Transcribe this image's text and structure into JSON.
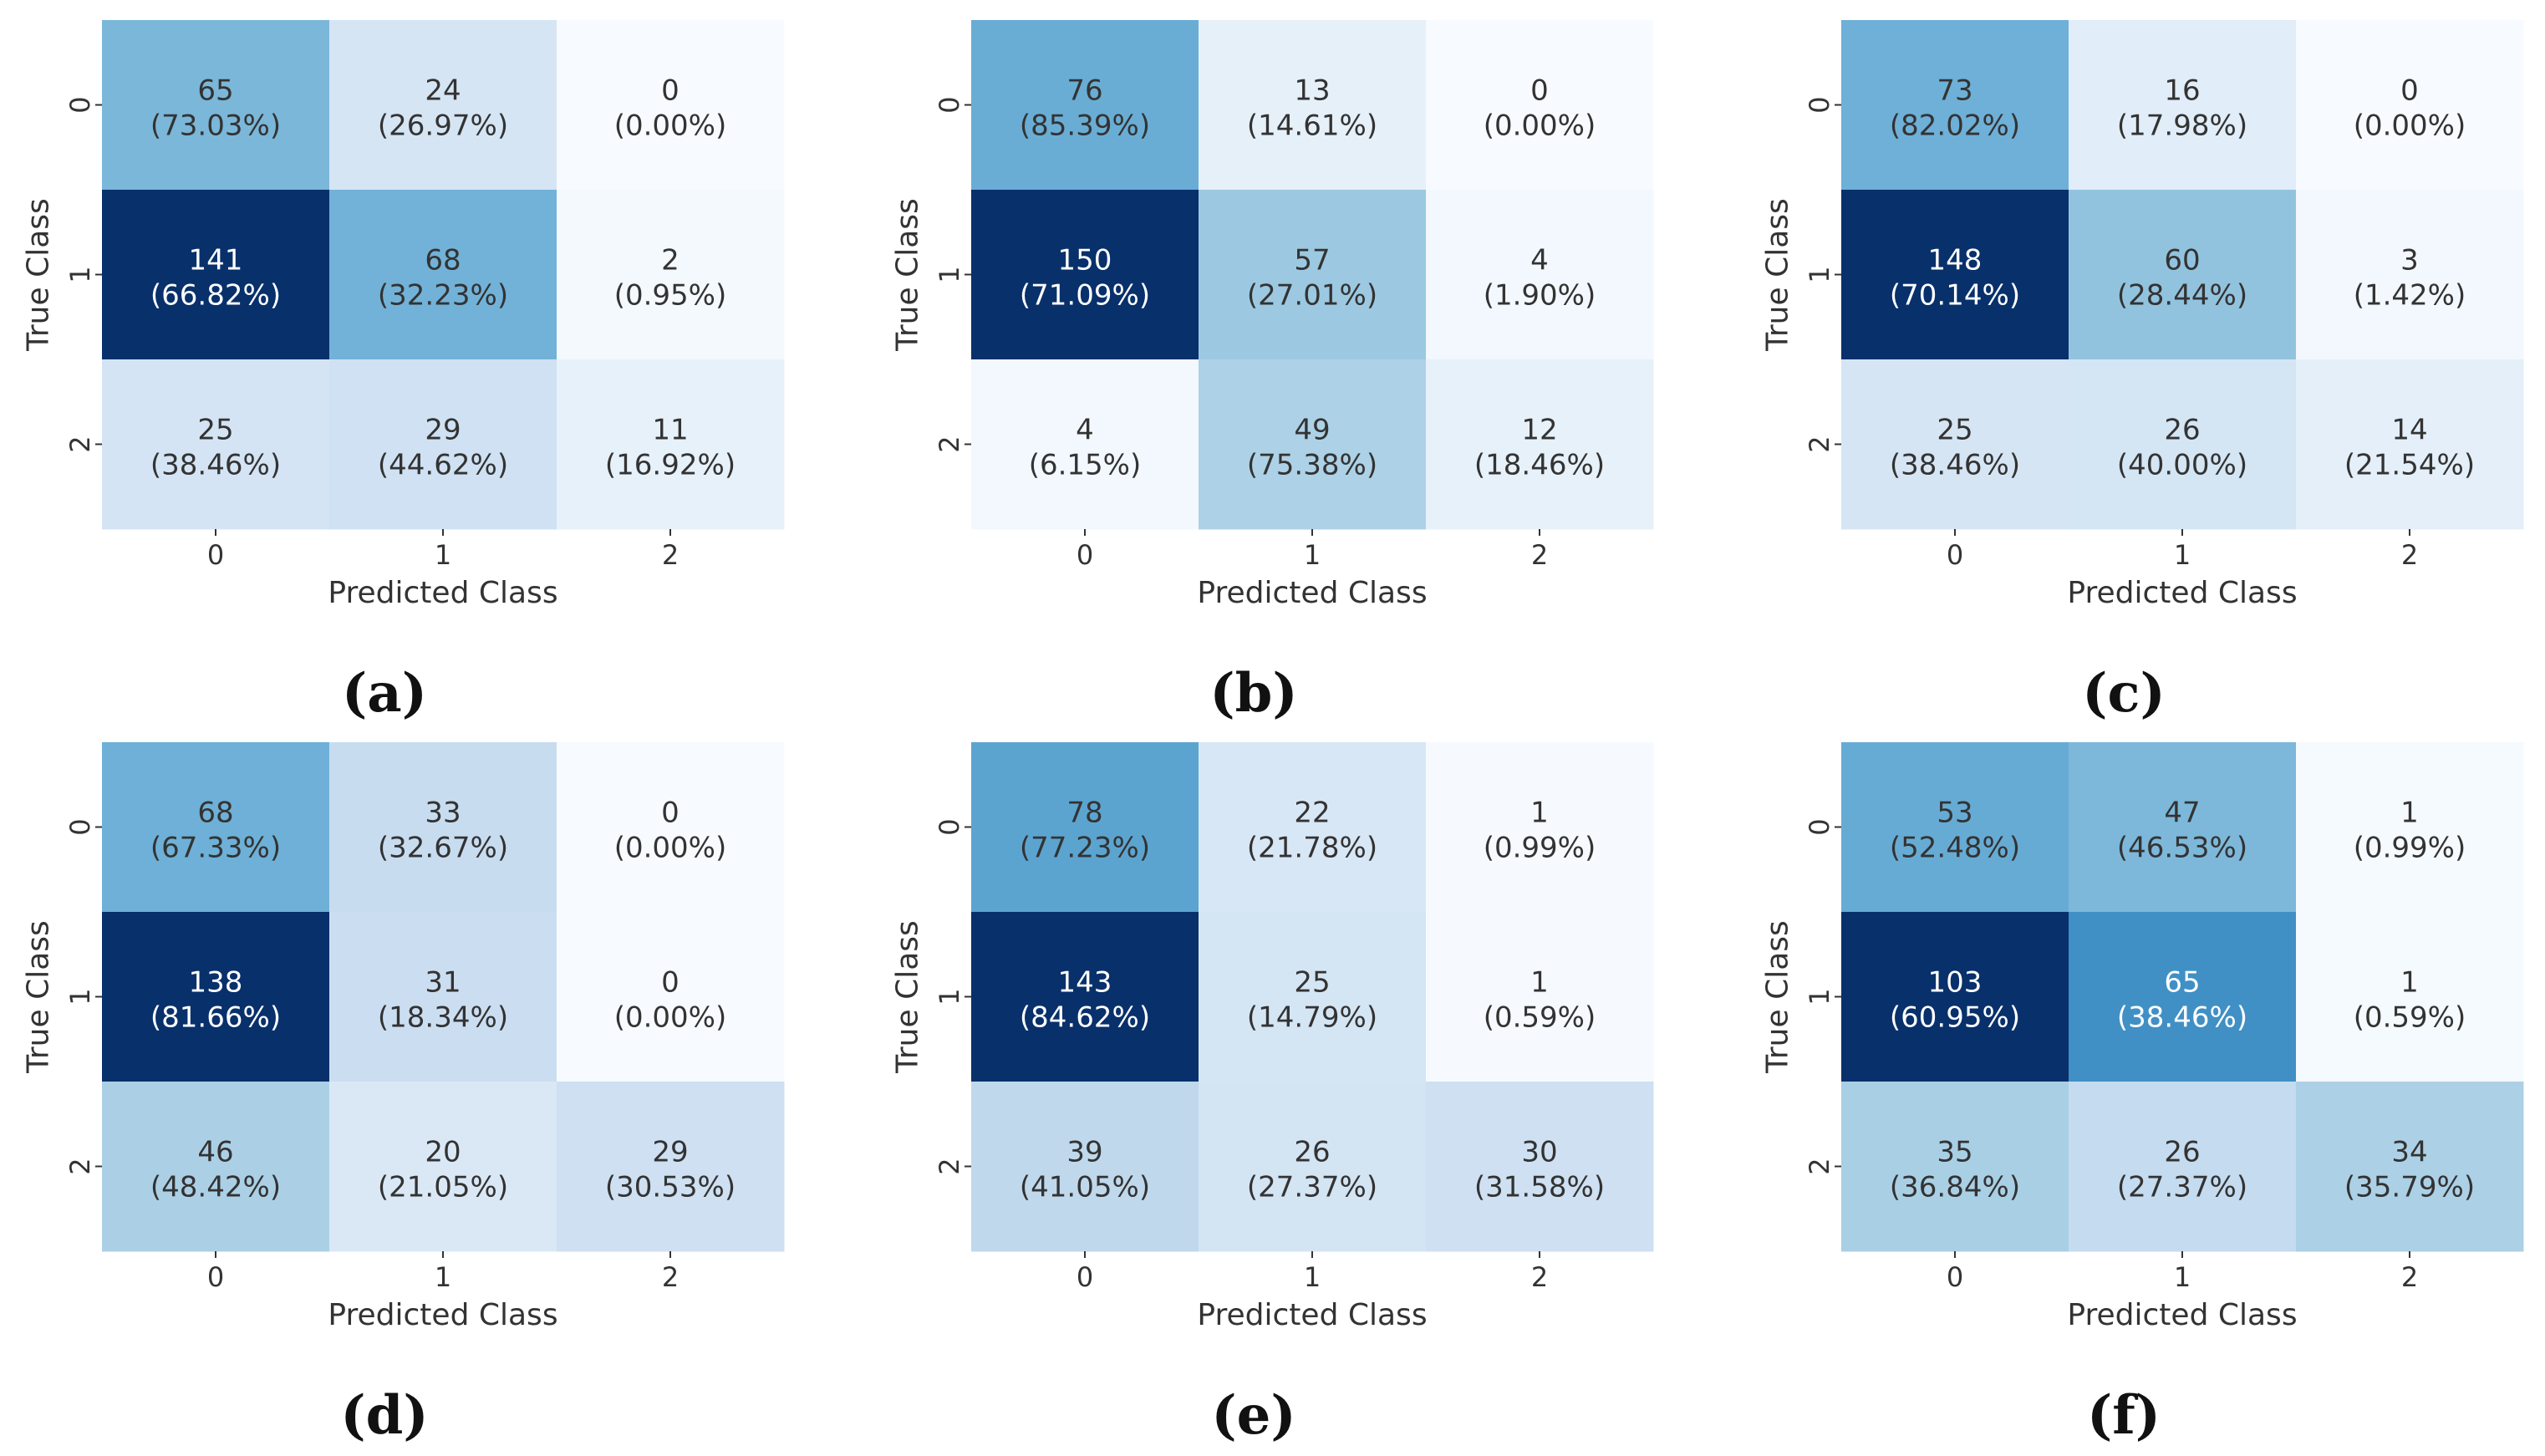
{
  "figure": {
    "colormap": "Blues",
    "colors": {
      "text_dark": "#333333",
      "text_light": "#ffffff",
      "caption": "#111111"
    }
  },
  "chart_data": [
    {
      "type": "heatmap",
      "caption": "a",
      "caption_text": "(a)",
      "xlabel": "Predicted Class",
      "ylabel": "True Class",
      "x_ticks": [
        "0",
        "1",
        "2"
      ],
      "y_ticks": [
        "0",
        "1",
        "2"
      ],
      "counts": [
        [
          65,
          24,
          0
        ],
        [
          141,
          68,
          2
        ],
        [
          25,
          29,
          11
        ]
      ],
      "percents": [
        "73.03%",
        "26.97%",
        "0.00%",
        "66.82%",
        "32.23%",
        "0.95%",
        "38.46%",
        "44.62%",
        "16.92%"
      ]
    },
    {
      "type": "heatmap",
      "caption": "b",
      "caption_text": "(b)",
      "xlabel": "Predicted Class",
      "ylabel": "True Class",
      "x_ticks": [
        "0",
        "1",
        "2"
      ],
      "y_ticks": [
        "0",
        "1",
        "2"
      ],
      "counts": [
        [
          76,
          13,
          0
        ],
        [
          150,
          57,
          4
        ],
        [
          4,
          49,
          12
        ]
      ],
      "percents": [
        "85.39%",
        "14.61%",
        "0.00%",
        "71.09%",
        "27.01%",
        "1.90%",
        "6.15%",
        "75.38%",
        "18.46%"
      ]
    },
    {
      "type": "heatmap",
      "caption": "c",
      "caption_text": "(c)",
      "xlabel": "Predicted Class",
      "ylabel": "True Class",
      "x_ticks": [
        "0",
        "1",
        "2"
      ],
      "y_ticks": [
        "0",
        "1",
        "2"
      ],
      "counts": [
        [
          73,
          16,
          0
        ],
        [
          148,
          60,
          3
        ],
        [
          25,
          26,
          14
        ]
      ],
      "percents": [
        "82.02%",
        "17.98%",
        "0.00%",
        "70.14%",
        "28.44%",
        "1.42%",
        "38.46%",
        "40.00%",
        "21.54%"
      ]
    },
    {
      "type": "heatmap",
      "caption": "d",
      "caption_text": "(d)",
      "xlabel": "Predicted Class",
      "ylabel": "True Class",
      "x_ticks": [
        "0",
        "1",
        "2"
      ],
      "y_ticks": [
        "0",
        "1",
        "2"
      ],
      "counts": [
        [
          68,
          33,
          0
        ],
        [
          138,
          31,
          0
        ],
        [
          46,
          20,
          29
        ]
      ],
      "percents": [
        "67.33%",
        "32.67%",
        "0.00%",
        "81.66%",
        "18.34%",
        "0.00%",
        "48.42%",
        "21.05%",
        "30.53%"
      ]
    },
    {
      "type": "heatmap",
      "caption": "e",
      "caption_text": "(e)",
      "xlabel": "Predicted Class",
      "ylabel": "True Class",
      "x_ticks": [
        "0",
        "1",
        "2"
      ],
      "y_ticks": [
        "0",
        "1",
        "2"
      ],
      "counts": [
        [
          78,
          22,
          1
        ],
        [
          143,
          25,
          1
        ],
        [
          39,
          26,
          30
        ]
      ],
      "percents": [
        "77.23%",
        "21.78%",
        "0.99%",
        "84.62%",
        "14.79%",
        "0.59%",
        "41.05%",
        "27.37%",
        "31.58%"
      ]
    },
    {
      "type": "heatmap",
      "caption": "f",
      "caption_text": "(f)",
      "xlabel": "Predicted Class",
      "ylabel": "True Class",
      "x_ticks": [
        "0",
        "1",
        "2"
      ],
      "y_ticks": [
        "0",
        "1",
        "2"
      ],
      "counts": [
        [
          53,
          47,
          1
        ],
        [
          103,
          65,
          1
        ],
        [
          35,
          26,
          34
        ]
      ],
      "percents": [
        "52.48%",
        "46.53%",
        "0.99%",
        "60.95%",
        "38.46%",
        "0.59%",
        "36.84%",
        "27.37%",
        "35.79%"
      ]
    }
  ]
}
